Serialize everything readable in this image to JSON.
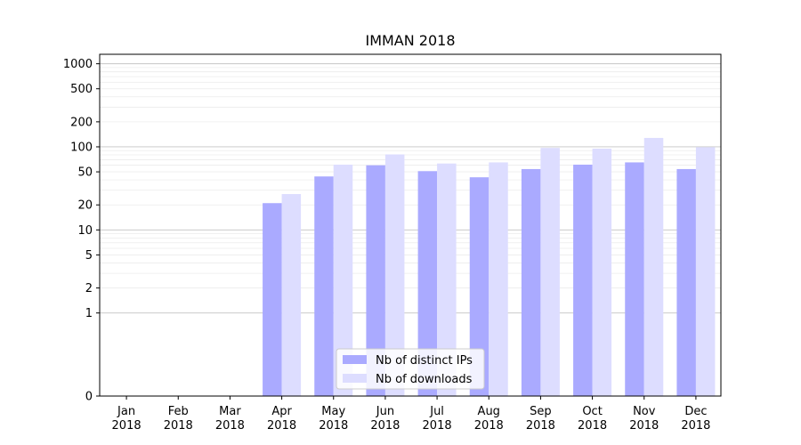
{
  "chart_data": {
    "type": "bar",
    "title": "IMMAN 2018",
    "xlabel": "",
    "ylabel": "",
    "y_scale": "symlog",
    "ylim": [
      0,
      1300
    ],
    "y_tick_values": [
      0,
      1,
      2,
      5,
      10,
      20,
      50,
      100,
      200,
      500,
      1000
    ],
    "y_tick_labels": [
      "0",
      "1",
      "2",
      "5",
      "10",
      "20",
      "50",
      "100",
      "200",
      "500",
      "1000"
    ],
    "categories": [
      [
        "Jan",
        "2018"
      ],
      [
        "Feb",
        "2018"
      ],
      [
        "Mar",
        "2018"
      ],
      [
        "Apr",
        "2018"
      ],
      [
        "May",
        "2018"
      ],
      [
        "Jun",
        "2018"
      ],
      [
        "Jul",
        "2018"
      ],
      [
        "Aug",
        "2018"
      ],
      [
        "Sep",
        "2018"
      ],
      [
        "Oct",
        "2018"
      ],
      [
        "Nov",
        "2018"
      ],
      [
        "Dec",
        "2018"
      ]
    ],
    "series": [
      {
        "name": "Nb of distinct IPs",
        "color": "#aaaaff",
        "values": [
          0,
          0,
          0,
          21,
          44,
          60,
          51,
          43,
          54,
          61,
          65,
          54
        ]
      },
      {
        "name": "Nb of downloads",
        "color": "#ddddff",
        "values": [
          0,
          0,
          0,
          27,
          61,
          81,
          63,
          65,
          97,
          95,
          128,
          99
        ]
      }
    ],
    "grid": true,
    "legend": "lower-center"
  }
}
